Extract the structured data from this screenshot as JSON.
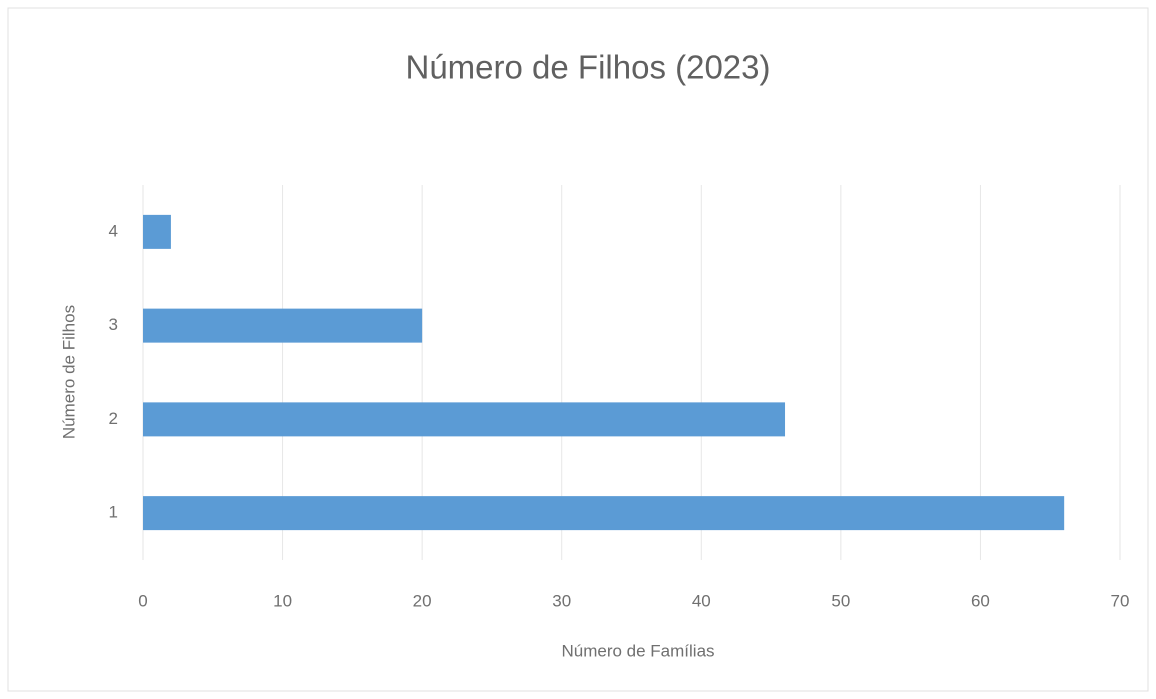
{
  "chart_data": {
    "type": "barh",
    "title": "Número de Filhos (2023)",
    "x_label": "Número de Famílias",
    "y_label": "Número de Filhos",
    "categories": [
      "1",
      "2",
      "3",
      "4"
    ],
    "values": [
      66,
      46,
      20,
      2
    ],
    "color": "#5b9bd5",
    "xlim": [
      0,
      70
    ],
    "xticks": [
      0,
      10,
      20,
      30,
      40,
      50,
      60,
      70
    ],
    "grid": true
  }
}
